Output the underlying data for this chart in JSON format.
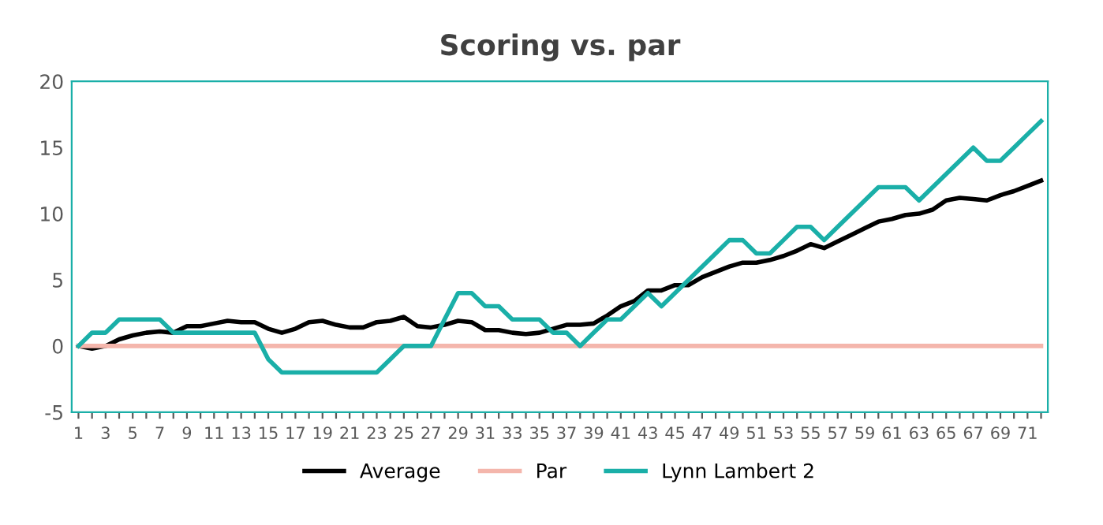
{
  "chart_data": {
    "type": "line",
    "title": "Scoring vs. par",
    "categories": [
      "1",
      null,
      "3",
      null,
      "5",
      null,
      "7",
      null,
      "9",
      null,
      "11",
      null,
      "13",
      null,
      "15",
      null,
      "17",
      null,
      "19",
      null,
      "21",
      null,
      "23",
      null,
      "25",
      null,
      "27",
      null,
      "29",
      null,
      "31",
      null,
      "33",
      null,
      "35",
      null,
      "37",
      null,
      "39",
      null,
      "41",
      null,
      "43",
      null,
      "45",
      null,
      "47",
      null,
      "49",
      null,
      "51",
      null,
      "53",
      null,
      "55",
      null,
      "57",
      null,
      "59",
      null,
      "61",
      null,
      "63",
      null,
      "65",
      null,
      "67",
      null,
      "69",
      null,
      "71",
      null
    ],
    "series": [
      {
        "name": "Average",
        "color": "#000000",
        "values": [
          0,
          -0.2,
          0,
          0.5,
          0.8,
          1.0,
          1.1,
          1.0,
          1.5,
          1.5,
          1.7,
          1.9,
          1.8,
          1.8,
          1.3,
          1.0,
          1.3,
          1.8,
          1.9,
          1.6,
          1.4,
          1.4,
          1.8,
          1.9,
          2.2,
          1.5,
          1.4,
          1.6,
          1.9,
          1.8,
          1.2,
          1.2,
          1.0,
          0.9,
          1.0,
          1.3,
          1.6,
          1.6,
          1.7,
          2.3,
          3.0,
          3.4,
          4.2,
          4.2,
          4.6,
          4.6,
          5.2,
          5.6,
          6.0,
          6.3,
          6.3,
          6.5,
          6.8,
          7.2,
          7.7,
          7.4,
          7.9,
          8.4,
          8.9,
          9.4,
          9.6,
          9.9,
          10.0,
          10.3,
          11.0,
          11.2,
          11.1,
          11.0,
          11.4,
          11.7,
          12.1,
          12.5
        ]
      },
      {
        "name": "Par",
        "color": "#f4b6ac",
        "values": [
          0,
          0,
          0,
          0,
          0,
          0,
          0,
          0,
          0,
          0,
          0,
          0,
          0,
          0,
          0,
          0,
          0,
          0,
          0,
          0,
          0,
          0,
          0,
          0,
          0,
          0,
          0,
          0,
          0,
          0,
          0,
          0,
          0,
          0,
          0,
          0,
          0,
          0,
          0,
          0,
          0,
          0,
          0,
          0,
          0,
          0,
          0,
          0,
          0,
          0,
          0,
          0,
          0,
          0,
          0,
          0,
          0,
          0,
          0,
          0,
          0,
          0,
          0,
          0,
          0,
          0,
          0,
          0,
          0,
          0,
          0,
          0
        ]
      },
      {
        "name": "Lynn Lambert 2",
        "color": "#1aafa8",
        "values": [
          0,
          1,
          1,
          2,
          2,
          2,
          2,
          1,
          1,
          1,
          1,
          1,
          1,
          1,
          -1,
          -2,
          -2,
          -2,
          -2,
          -2,
          -2,
          -2,
          -2,
          -1,
          0,
          0,
          0,
          2,
          4,
          4,
          3,
          3,
          2,
          2,
          2,
          1,
          1,
          0,
          1,
          2,
          2,
          3,
          4,
          3,
          4,
          5,
          6,
          7,
          8,
          8,
          7,
          7,
          8,
          9,
          9,
          8,
          9,
          10,
          11,
          12,
          12,
          12,
          11,
          12,
          13,
          14,
          15,
          14,
          14,
          15,
          16,
          17
        ]
      }
    ],
    "ylim": [
      -5,
      20
    ],
    "yticks": [
      -5,
      0,
      5,
      10,
      15,
      20
    ],
    "grid": false,
    "legend": "bottom",
    "marker": "none",
    "line_style": "solid"
  }
}
